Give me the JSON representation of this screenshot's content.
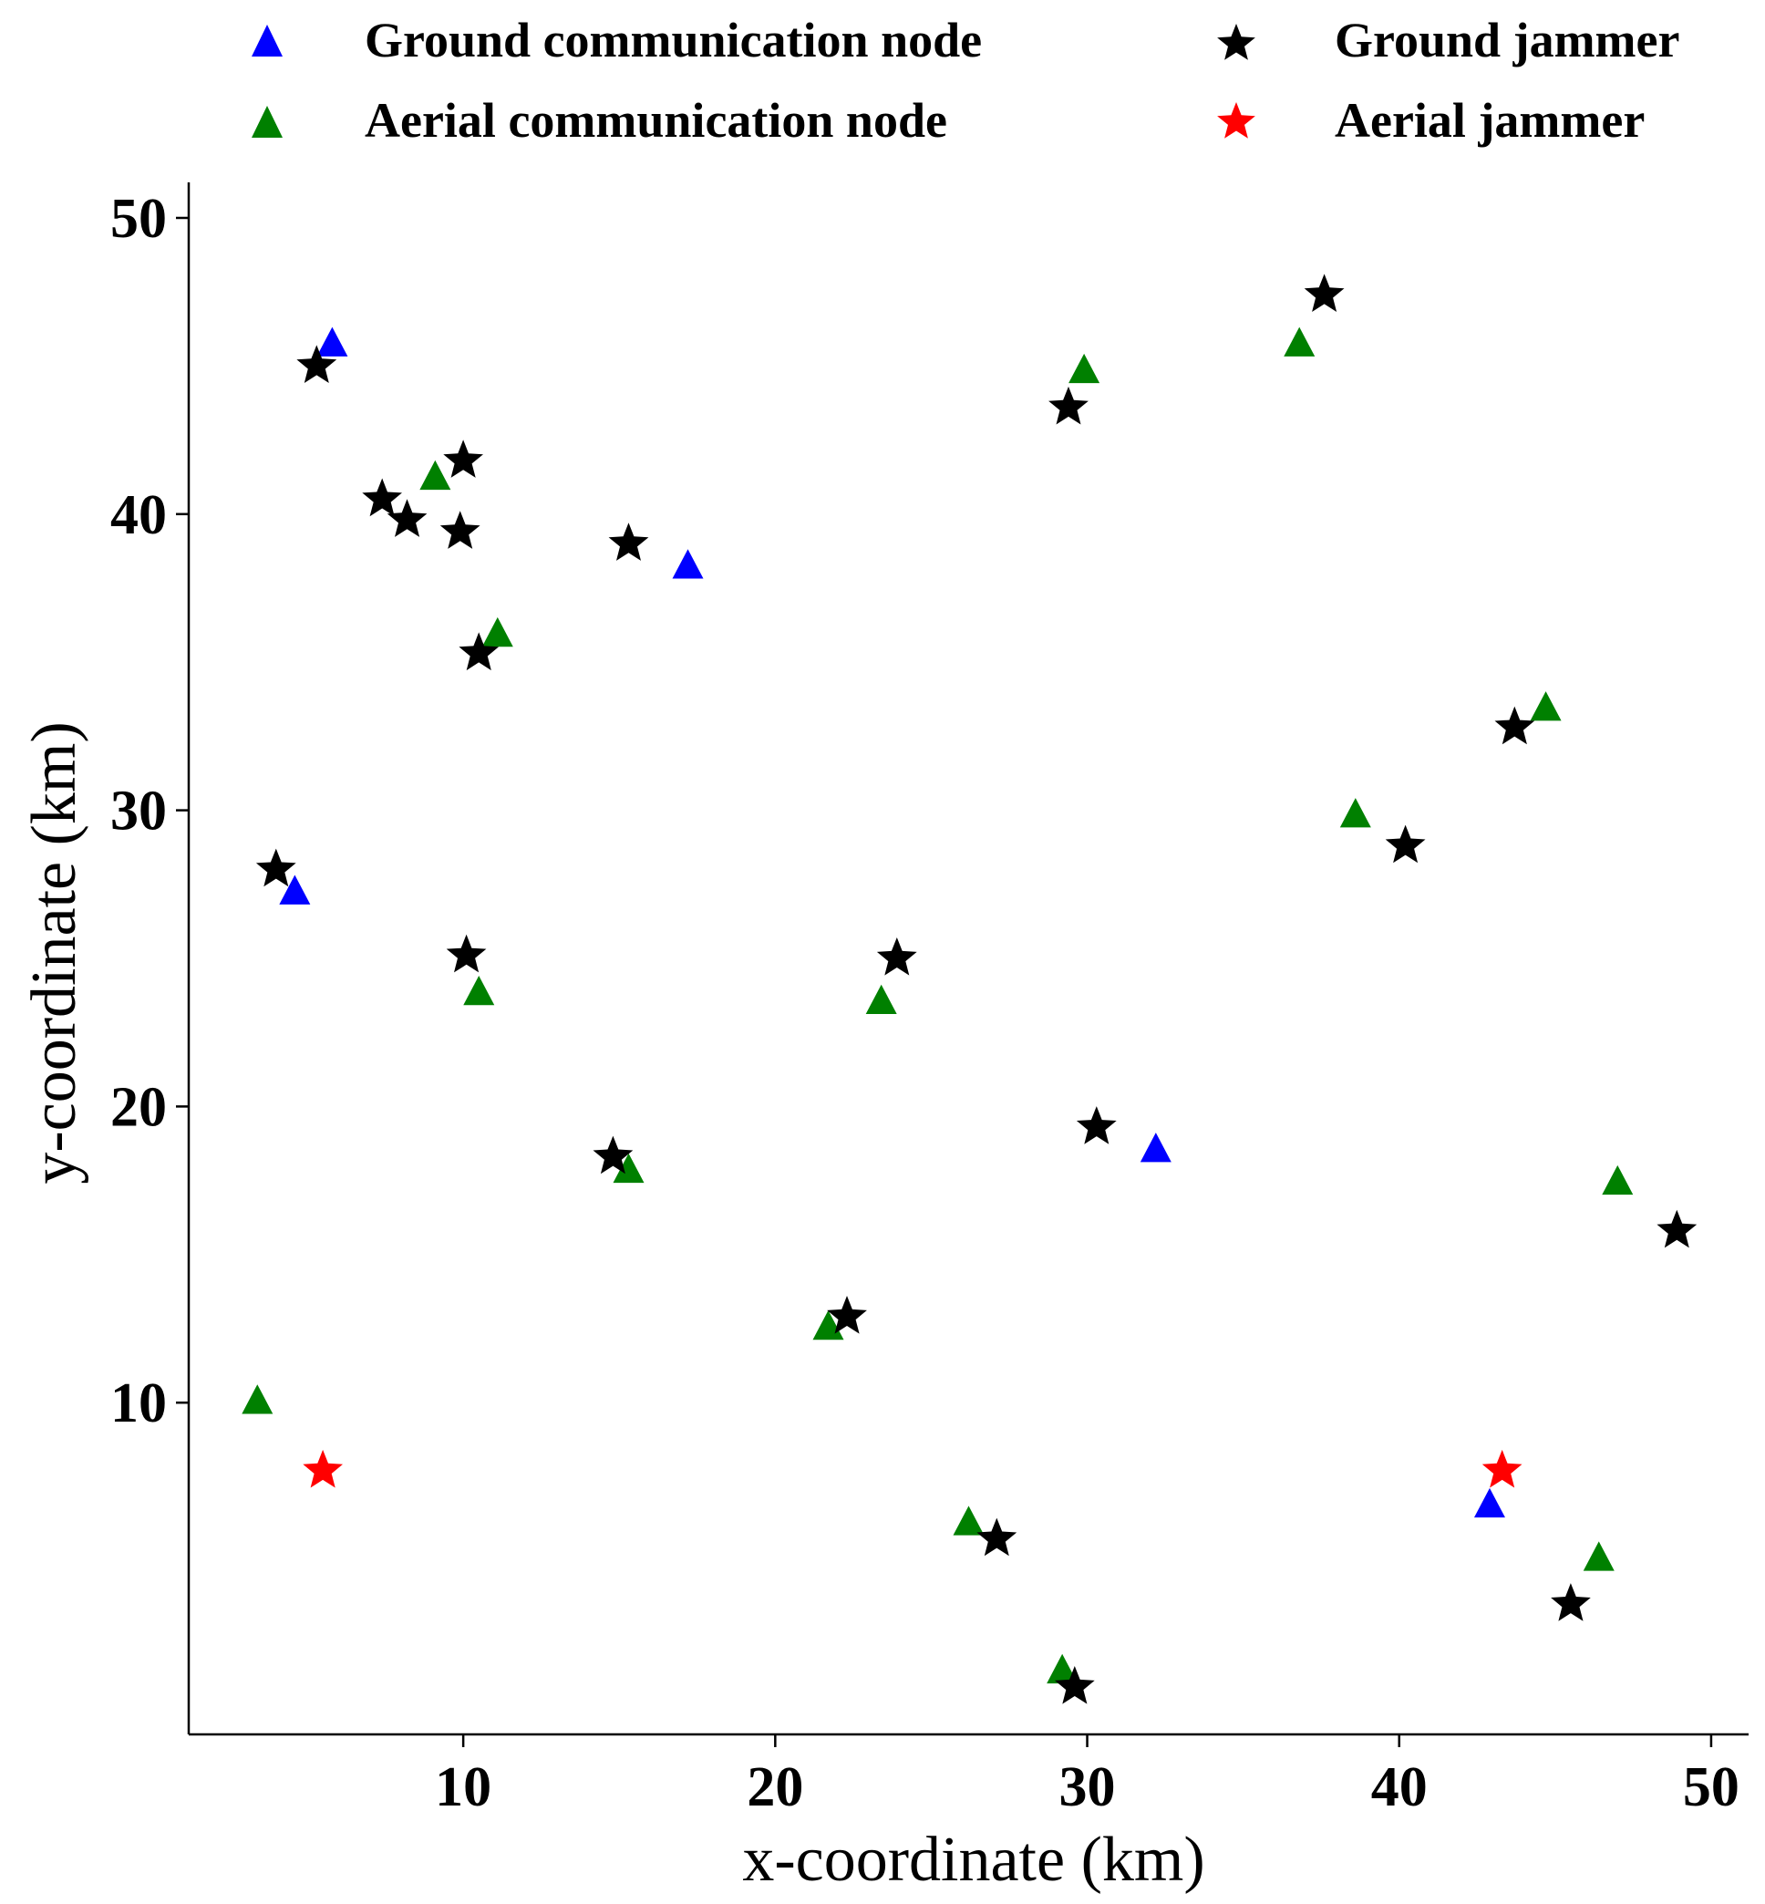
{
  "chart_data": {
    "type": "scatter",
    "title": "",
    "xlabel": "x-coordinate (km)",
    "ylabel": "y-coordinate (km)",
    "xlim": [
      1.2,
      51.2
    ],
    "ylim": [
      -1.2,
      51.2
    ],
    "xticks": [
      10,
      20,
      30,
      40,
      50
    ],
    "yticks": [
      10,
      20,
      30,
      40,
      50
    ],
    "grid": false,
    "legend_position": "top",
    "series": [
      {
        "name": "Ground communication node",
        "marker": "triangle",
        "color": "#0000ff",
        "points": [
          {
            "x": 5.8,
            "y": 45.7
          },
          {
            "x": 17.2,
            "y": 38.2
          },
          {
            "x": 4.6,
            "y": 27.2
          },
          {
            "x": 32.2,
            "y": 18.5
          },
          {
            "x": 42.9,
            "y": 6.5
          }
        ]
      },
      {
        "name": "Aerial communication node",
        "marker": "triangle",
        "color": "#008000",
        "points": [
          {
            "x": 9.1,
            "y": 41.2
          },
          {
            "x": 11.1,
            "y": 35.9
          },
          {
            "x": 29.9,
            "y": 44.8
          },
          {
            "x": 36.8,
            "y": 45.7
          },
          {
            "x": 38.6,
            "y": 29.8
          },
          {
            "x": 44.7,
            "y": 33.4
          },
          {
            "x": 10.5,
            "y": 23.8
          },
          {
            "x": 23.4,
            "y": 23.5
          },
          {
            "x": 15.3,
            "y": 17.8
          },
          {
            "x": 21.7,
            "y": 12.5
          },
          {
            "x": 47,
            "y": 17.4
          },
          {
            "x": 3.4,
            "y": 10
          },
          {
            "x": 26.2,
            "y": 5.9
          },
          {
            "x": 46.4,
            "y": 4.7
          },
          {
            "x": 29.2,
            "y": 0.9
          }
        ]
      },
      {
        "name": "Ground jammer",
        "marker": "star",
        "color": "#000000",
        "points": [
          {
            "x": 5.3,
            "y": 45
          },
          {
            "x": 10,
            "y": 41.8
          },
          {
            "x": 7.4,
            "y": 40.5
          },
          {
            "x": 8.2,
            "y": 39.8
          },
          {
            "x": 9.9,
            "y": 39.4
          },
          {
            "x": 15.3,
            "y": 39
          },
          {
            "x": 10.5,
            "y": 35.3
          },
          {
            "x": 29.4,
            "y": 43.6
          },
          {
            "x": 37.6,
            "y": 47.4
          },
          {
            "x": 43.7,
            "y": 32.8
          },
          {
            "x": 40.2,
            "y": 28.8
          },
          {
            "x": 4,
            "y": 28
          },
          {
            "x": 10.1,
            "y": 25.1
          },
          {
            "x": 23.9,
            "y": 25
          },
          {
            "x": 14.8,
            "y": 18.3
          },
          {
            "x": 30.3,
            "y": 19.3
          },
          {
            "x": 48.9,
            "y": 15.8
          },
          {
            "x": 22.3,
            "y": 12.9
          },
          {
            "x": 27.1,
            "y": 5.4
          },
          {
            "x": 45.5,
            "y": 3.2
          },
          {
            "x": 29.6,
            "y": 0.4
          }
        ]
      },
      {
        "name": "Aerial jammer",
        "marker": "star",
        "color": "#ff0000",
        "points": [
          {
            "x": 5.5,
            "y": 7.7
          },
          {
            "x": 43.3,
            "y": 7.7
          }
        ]
      }
    ]
  }
}
